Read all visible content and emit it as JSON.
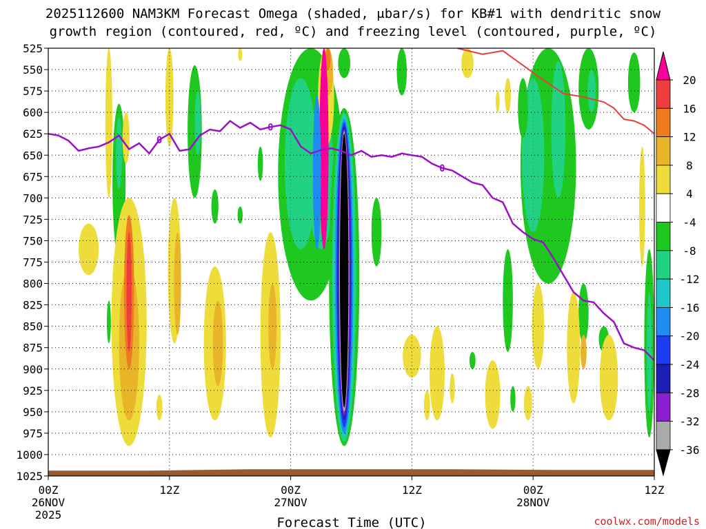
{
  "chart_data": {
    "type": "heatmap",
    "title_line1": "2025112600 NAM3KM Forecast Omega (shaded, μbar/s) for KB#1 with dendritic snow",
    "title_line2": "growth region (contoured, red, ºC) and freezing level (contoured, purple, ºC)",
    "xlabel": "Forecast Time (UTC)",
    "credit": "coolwx.com/models",
    "y_axis": {
      "unit": "hPa",
      "range": [
        1025,
        525
      ],
      "ticks": [
        "525",
        "550",
        "575",
        "600",
        "625",
        "650",
        "675",
        "700",
        "725",
        "750",
        "775",
        "800",
        "825",
        "850",
        "875",
        "900",
        "925",
        "950",
        "975",
        "1000",
        "1025"
      ]
    },
    "x_axis": {
      "unit": "forecast hour",
      "range": [
        0,
        60
      ],
      "ticks": [
        {
          "hour": 0,
          "label": "00Z",
          "date": "26NOV",
          "year": "2025"
        },
        {
          "hour": 12,
          "label": "12Z",
          "date": "",
          "year": ""
        },
        {
          "hour": 24,
          "label": "00Z",
          "date": "27NOV",
          "year": ""
        },
        {
          "hour": 36,
          "label": "12Z",
          "date": "",
          "year": ""
        },
        {
          "hour": 48,
          "label": "00Z",
          "date": "28NOV",
          "year": ""
        },
        {
          "hour": 60,
          "label": "12Z",
          "date": "",
          "year": ""
        }
      ]
    },
    "colorbar": {
      "levels": [
        "20",
        "16",
        "12",
        "8",
        "4",
        "-4",
        "-8",
        "-12",
        "-16",
        "-20",
        "-24",
        "-28",
        "-32",
        "-36"
      ],
      "colors": [
        "#fb0098",
        "#f03c3c",
        "#ee7c1e",
        "#e8b428",
        "#eddc3a",
        "#ffffff",
        "#1ec81e",
        "#20d282",
        "#1ec8c8",
        "#1e8cf0",
        "#1e3cf0",
        "#1e1eb4",
        "#8c1ed2",
        "#aaaaaa",
        "#000000"
      ]
    },
    "freezing_level": {
      "label": "0",
      "color": "#9a10c8",
      "points": [
        [
          0,
          625
        ],
        [
          1,
          627
        ],
        [
          2,
          633
        ],
        [
          3,
          645
        ],
        [
          4,
          642
        ],
        [
          5,
          640
        ],
        [
          6,
          635
        ],
        [
          7,
          627
        ],
        [
          8,
          643
        ],
        [
          9,
          636
        ],
        [
          10,
          648
        ],
        [
          11,
          632
        ],
        [
          12,
          625
        ],
        [
          13,
          645
        ],
        [
          14,
          643
        ],
        [
          15,
          627
        ],
        [
          16,
          620
        ],
        [
          17,
          622
        ],
        [
          18,
          610
        ],
        [
          19,
          618
        ],
        [
          20,
          612
        ],
        [
          21,
          620
        ],
        [
          22,
          617
        ],
        [
          23,
          615
        ],
        [
          24,
          620
        ],
        [
          25,
          640
        ],
        [
          26,
          648
        ],
        [
          27,
          644
        ],
        [
          28,
          642
        ],
        [
          29,
          645
        ],
        [
          30,
          650
        ],
        [
          31,
          645
        ],
        [
          32,
          652
        ],
        [
          33,
          650
        ],
        [
          34,
          652
        ],
        [
          35,
          648
        ],
        [
          36,
          650
        ],
        [
          37,
          652
        ],
        [
          38,
          660
        ],
        [
          39,
          665
        ],
        [
          40,
          668
        ],
        [
          41,
          675
        ],
        [
          42,
          682
        ],
        [
          43,
          685
        ],
        [
          44,
          700
        ],
        [
          45,
          705
        ],
        [
          46,
          730
        ],
        [
          47,
          740
        ],
        [
          48,
          748
        ],
        [
          49,
          752
        ],
        [
          50,
          770
        ],
        [
          51,
          790
        ],
        [
          52,
          810
        ],
        [
          53,
          820
        ],
        [
          54,
          822
        ],
        [
          55,
          835
        ],
        [
          56,
          845
        ],
        [
          57,
          870
        ],
        [
          58,
          875
        ],
        [
          59,
          878
        ],
        [
          60,
          890
        ]
      ],
      "labels_at_hours": [
        11,
        22,
        39
      ]
    },
    "dgz_contour": {
      "color": "#e83c3c",
      "points": [
        [
          40.5,
          525
        ],
        [
          43,
          532
        ],
        [
          45,
          528
        ],
        [
          47,
          545
        ],
        [
          49,
          562
        ],
        [
          51,
          578
        ],
        [
          53,
          582
        ],
        [
          55,
          588
        ],
        [
          56,
          595
        ],
        [
          57,
          608
        ],
        [
          58,
          610
        ],
        [
          59,
          615
        ],
        [
          60,
          625
        ]
      ]
    },
    "ground": {
      "color": "#9a5a30",
      "top_hpa": 1018
    }
  }
}
